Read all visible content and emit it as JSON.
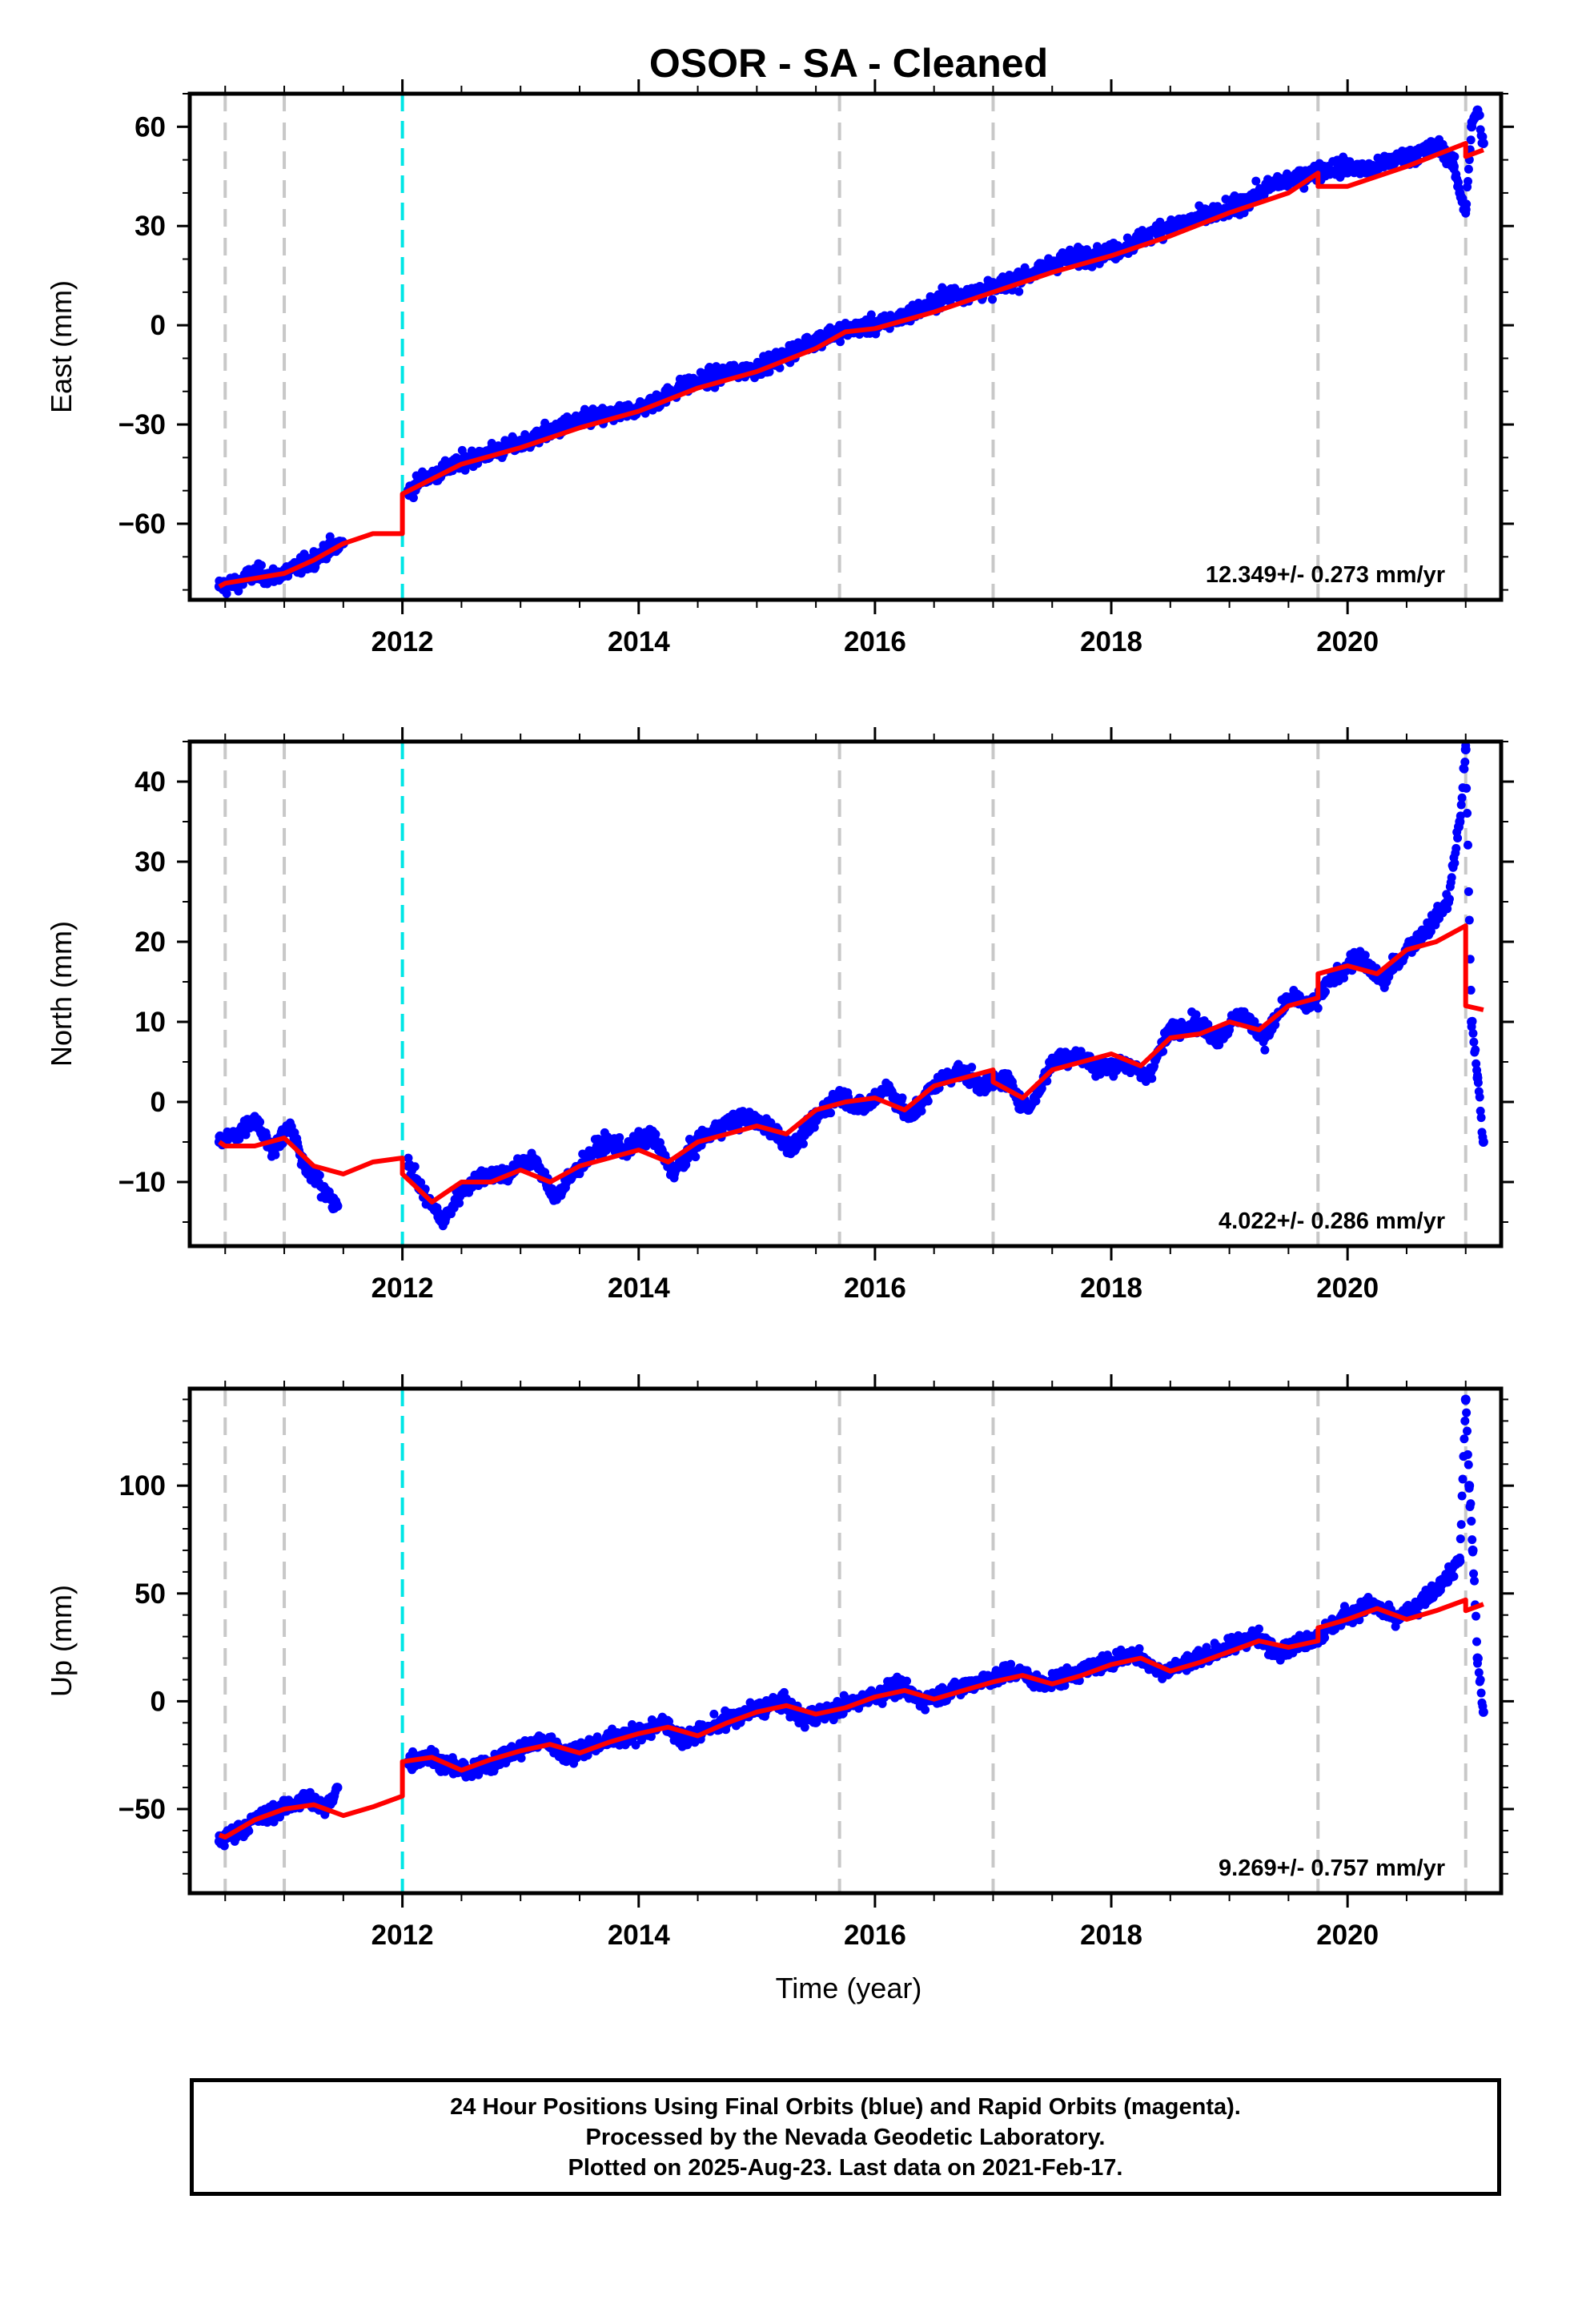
{
  "title": "OSOR  - SA - Cleaned",
  "xlabel": "Time (year)",
  "footer": {
    "line1": "24 Hour Positions Using Final Orbits (blue) and Rapid Orbits (magenta).",
    "line2": "Processed by the Nevada Geodetic Laboratory.",
    "line3": "Plotted on 2025-Aug-23. Last data on 2021-Feb-17."
  },
  "colors": {
    "points": "#0000ff",
    "model": "#ff0000",
    "equipment_change": "#c8c8c8",
    "earthquake": "#00e6e6"
  },
  "chart_data": [
    {
      "type": "scatter",
      "name": "East",
      "ylabel": "East (mm)",
      "rate": "12.349+/- 0.273 mm/yr",
      "xlim": [
        2010.2,
        2021.3
      ],
      "ylim": [
        -83,
        70
      ],
      "yticks": [
        60,
        30,
        0,
        -30,
        -60
      ],
      "ytick_labels": [
        "60",
        "30",
        "0",
        "−30",
        "−60"
      ],
      "xticks": [
        2012,
        2014,
        2016,
        2018,
        2020
      ],
      "equipment_changes": [
        2010.5,
        2011.0,
        2015.7,
        2017.0,
        2019.75,
        2021.0
      ],
      "earthquakes": [
        2012.0
      ],
      "model": [
        [
          2010.45,
          -79
        ],
        [
          2010.5,
          -78
        ],
        [
          2010.75,
          -76.5
        ],
        [
          2011.0,
          -75
        ],
        [
          2011.25,
          -71
        ],
        [
          2011.5,
          -66
        ],
        [
          2011.75,
          -63
        ],
        [
          2012.0,
          -63
        ],
        [
          2012.0,
          -51
        ],
        [
          2012.5,
          -42
        ],
        [
          2013.0,
          -37
        ],
        [
          2013.5,
          -31
        ],
        [
          2014.0,
          -26
        ],
        [
          2014.5,
          -19
        ],
        [
          2015.0,
          -14
        ],
        [
          2015.5,
          -7
        ],
        [
          2015.75,
          -2
        ],
        [
          2016.0,
          -1
        ],
        [
          2016.5,
          4
        ],
        [
          2017.0,
          10
        ],
        [
          2017.5,
          16
        ],
        [
          2018.0,
          21
        ],
        [
          2018.5,
          27
        ],
        [
          2019.0,
          34
        ],
        [
          2019.5,
          40
        ],
        [
          2019.75,
          46
        ],
        [
          2019.75,
          42
        ],
        [
          2020.0,
          42
        ],
        [
          2020.5,
          48
        ],
        [
          2021.0,
          55
        ],
        [
          2021.0,
          51
        ],
        [
          2021.15,
          53
        ]
      ],
      "points": [
        [
          2010.45,
          -79
        ],
        [
          2010.6,
          -78
        ],
        [
          2010.75,
          -75
        ],
        [
          2010.9,
          -76
        ],
        [
          2011.05,
          -74
        ],
        [
          2011.2,
          -72
        ],
        [
          2011.35,
          -68
        ],
        [
          2011.5,
          -66
        ],
        [
          2012.05,
          -50
        ],
        [
          2012.2,
          -46
        ],
        [
          2012.4,
          -43
        ],
        [
          2012.6,
          -40
        ],
        [
          2012.8,
          -38
        ],
        [
          2013.0,
          -36
        ],
        [
          2013.2,
          -33
        ],
        [
          2013.4,
          -30
        ],
        [
          2013.6,
          -28
        ],
        [
          2013.8,
          -27
        ],
        [
          2014.0,
          -25
        ],
        [
          2014.2,
          -22
        ],
        [
          2014.4,
          -18
        ],
        [
          2014.6,
          -16
        ],
        [
          2014.8,
          -14
        ],
        [
          2015.0,
          -13
        ],
        [
          2015.2,
          -10
        ],
        [
          2015.4,
          -6
        ],
        [
          2015.6,
          -3
        ],
        [
          2015.8,
          -1
        ],
        [
          2016.0,
          0
        ],
        [
          2016.2,
          2
        ],
        [
          2016.4,
          5
        ],
        [
          2016.6,
          9
        ],
        [
          2016.8,
          10
        ],
        [
          2017.0,
          11
        ],
        [
          2017.2,
          14
        ],
        [
          2017.4,
          17
        ],
        [
          2017.6,
          20
        ],
        [
          2017.8,
          21
        ],
        [
          2018.0,
          22
        ],
        [
          2018.2,
          25
        ],
        [
          2018.4,
          29
        ],
        [
          2018.6,
          31
        ],
        [
          2018.8,
          33
        ],
        [
          2019.0,
          35
        ],
        [
          2019.2,
          39
        ],
        [
          2019.4,
          43
        ],
        [
          2019.6,
          45
        ],
        [
          2019.8,
          47
        ],
        [
          2020.0,
          48
        ],
        [
          2020.2,
          47
        ],
        [
          2020.4,
          50
        ],
        [
          2020.6,
          52
        ],
        [
          2020.8,
          54
        ],
        [
          2020.9,
          48
        ],
        [
          2020.95,
          40
        ],
        [
          2021.0,
          35
        ],
        [
          2021.05,
          60
        ],
        [
          2021.1,
          65
        ],
        [
          2021.15,
          55
        ]
      ]
    },
    {
      "type": "scatter",
      "name": "North",
      "ylabel": "North (mm)",
      "rate": "4.022+/- 0.286 mm/yr",
      "xlim": [
        2010.2,
        2021.3
      ],
      "ylim": [
        -18,
        45
      ],
      "yticks": [
        40,
        30,
        20,
        10,
        0,
        -10
      ],
      "ytick_labels": [
        "40",
        "30",
        "20",
        "10",
        "0",
        "−10"
      ],
      "xticks": [
        2012,
        2014,
        2016,
        2018,
        2020
      ],
      "equipment_changes": [
        2010.5,
        2011.0,
        2015.7,
        2017.0,
        2019.75,
        2021.0
      ],
      "earthquakes": [
        2012.0
      ],
      "model": [
        [
          2010.45,
          -5
        ],
        [
          2010.5,
          -5.5
        ],
        [
          2010.75,
          -5.5
        ],
        [
          2011.0,
          -4.5
        ],
        [
          2011.25,
          -8
        ],
        [
          2011.5,
          -9
        ],
        [
          2011.75,
          -7.5
        ],
        [
          2012.0,
          -7
        ],
        [
          2012.0,
          -9
        ],
        [
          2012.25,
          -12.5
        ],
        [
          2012.5,
          -10
        ],
        [
          2012.75,
          -10
        ],
        [
          2013.0,
          -8.5
        ],
        [
          2013.25,
          -10
        ],
        [
          2013.5,
          -8
        ],
        [
          2013.75,
          -7
        ],
        [
          2014.0,
          -6
        ],
        [
          2014.25,
          -7.5
        ],
        [
          2014.5,
          -5
        ],
        [
          2014.75,
          -4
        ],
        [
          2015.0,
          -3
        ],
        [
          2015.25,
          -4
        ],
        [
          2015.5,
          -1
        ],
        [
          2015.75,
          0
        ],
        [
          2016.0,
          0.5
        ],
        [
          2016.25,
          -1
        ],
        [
          2016.5,
          2
        ],
        [
          2016.75,
          3
        ],
        [
          2017.0,
          4
        ],
        [
          2017.0,
          2.5
        ],
        [
          2017.25,
          0.5
        ],
        [
          2017.5,
          4
        ],
        [
          2017.75,
          5
        ],
        [
          2018.0,
          6
        ],
        [
          2018.25,
          4.5
        ],
        [
          2018.5,
          8
        ],
        [
          2018.75,
          8.5
        ],
        [
          2019.0,
          10
        ],
        [
          2019.25,
          9
        ],
        [
          2019.5,
          12
        ],
        [
          2019.75,
          13
        ],
        [
          2019.75,
          16
        ],
        [
          2020.0,
          17
        ],
        [
          2020.25,
          16
        ],
        [
          2020.5,
          19
        ],
        [
          2020.75,
          20
        ],
        [
          2021.0,
          22
        ],
        [
          2021.0,
          12
        ],
        [
          2021.15,
          11.5
        ]
      ],
      "points": [
        [
          2010.45,
          -5
        ],
        [
          2010.6,
          -4
        ],
        [
          2010.75,
          -2
        ],
        [
          2010.9,
          -6
        ],
        [
          2011.05,
          -3
        ],
        [
          2011.2,
          -9
        ],
        [
          2011.35,
          -11
        ],
        [
          2011.45,
          -13
        ],
        [
          2012.05,
          -8
        ],
        [
          2012.2,
          -12
        ],
        [
          2012.35,
          -15
        ],
        [
          2012.5,
          -11
        ],
        [
          2012.7,
          -9
        ],
        [
          2012.9,
          -9
        ],
        [
          2013.1,
          -7
        ],
        [
          2013.3,
          -12
        ],
        [
          2013.5,
          -8
        ],
        [
          2013.7,
          -5
        ],
        [
          2013.9,
          -6
        ],
        [
          2014.1,
          -4
        ],
        [
          2014.3,
          -9
        ],
        [
          2014.5,
          -5
        ],
        [
          2014.7,
          -3
        ],
        [
          2014.9,
          -2
        ],
        [
          2015.1,
          -3
        ],
        [
          2015.3,
          -6
        ],
        [
          2015.5,
          -2
        ],
        [
          2015.7,
          1
        ],
        [
          2015.9,
          -1
        ],
        [
          2016.1,
          2
        ],
        [
          2016.3,
          -2
        ],
        [
          2016.5,
          2
        ],
        [
          2016.7,
          4
        ],
        [
          2016.9,
          2
        ],
        [
          2017.1,
          3
        ],
        [
          2017.3,
          -1
        ],
        [
          2017.5,
          5
        ],
        [
          2017.7,
          6
        ],
        [
          2017.9,
          4
        ],
        [
          2018.1,
          5
        ],
        [
          2018.3,
          3
        ],
        [
          2018.5,
          9
        ],
        [
          2018.7,
          10
        ],
        [
          2018.9,
          8
        ],
        [
          2019.1,
          11
        ],
        [
          2019.3,
          8
        ],
        [
          2019.5,
          13
        ],
        [
          2019.7,
          12
        ],
        [
          2019.9,
          16
        ],
        [
          2020.1,
          18
        ],
        [
          2020.3,
          15
        ],
        [
          2020.5,
          19
        ],
        [
          2020.7,
          22
        ],
        [
          2020.85,
          25
        ],
        [
          2020.95,
          35
        ],
        [
          2021.0,
          44
        ],
        [
          2021.05,
          10
        ],
        [
          2021.1,
          3
        ],
        [
          2021.15,
          -5
        ]
      ]
    },
    {
      "type": "scatter",
      "name": "Up",
      "ylabel": "Up (mm)",
      "rate": "9.269+/- 0.757 mm/yr",
      "xlim": [
        2010.2,
        2021.3
      ],
      "ylim": [
        -89,
        145
      ],
      "yticks": [
        100,
        50,
        0,
        -50
      ],
      "ytick_labels": [
        "100",
        "50",
        "0",
        "−50"
      ],
      "xticks": [
        2012,
        2014,
        2016,
        2018,
        2020
      ],
      "equipment_changes": [
        2010.5,
        2011.0,
        2015.7,
        2017.0,
        2019.75,
        2021.0
      ],
      "earthquakes": [
        2012.0
      ],
      "model": [
        [
          2010.45,
          -62
        ],
        [
          2010.5,
          -63
        ],
        [
          2010.75,
          -55
        ],
        [
          2011.0,
          -50
        ],
        [
          2011.25,
          -48
        ],
        [
          2011.5,
          -53
        ],
        [
          2011.75,
          -49
        ],
        [
          2012.0,
          -44
        ],
        [
          2012.0,
          -28
        ],
        [
          2012.25,
          -26
        ],
        [
          2012.5,
          -32
        ],
        [
          2012.75,
          -27
        ],
        [
          2013.0,
          -23
        ],
        [
          2013.25,
          -20
        ],
        [
          2013.5,
          -24
        ],
        [
          2013.75,
          -19
        ],
        [
          2014.0,
          -15
        ],
        [
          2014.25,
          -12
        ],
        [
          2014.5,
          -16
        ],
        [
          2014.75,
          -10
        ],
        [
          2015.0,
          -5
        ],
        [
          2015.25,
          -2
        ],
        [
          2015.5,
          -6
        ],
        [
          2015.75,
          -3
        ],
        [
          2016.0,
          2
        ],
        [
          2016.25,
          5
        ],
        [
          2016.5,
          1
        ],
        [
          2016.75,
          5
        ],
        [
          2017.0,
          9
        ],
        [
          2017.25,
          12
        ],
        [
          2017.5,
          8
        ],
        [
          2017.75,
          12
        ],
        [
          2018.0,
          17
        ],
        [
          2018.25,
          20
        ],
        [
          2018.5,
          14
        ],
        [
          2018.75,
          18
        ],
        [
          2019.0,
          23
        ],
        [
          2019.25,
          28
        ],
        [
          2019.5,
          25
        ],
        [
          2019.75,
          28
        ],
        [
          2019.75,
          34
        ],
        [
          2020.0,
          38
        ],
        [
          2020.25,
          43
        ],
        [
          2020.5,
          38
        ],
        [
          2020.75,
          42
        ],
        [
          2021.0,
          47
        ],
        [
          2021.0,
          42
        ],
        [
          2021.15,
          45
        ]
      ],
      "points": [
        [
          2010.45,
          -65
        ],
        [
          2010.6,
          -60
        ],
        [
          2010.75,
          -55
        ],
        [
          2010.9,
          -52
        ],
        [
          2011.05,
          -48
        ],
        [
          2011.2,
          -45
        ],
        [
          2011.35,
          -50
        ],
        [
          2011.45,
          -40
        ],
        [
          2012.05,
          -28
        ],
        [
          2012.2,
          -25
        ],
        [
          2012.4,
          -30
        ],
        [
          2012.6,
          -33
        ],
        [
          2012.8,
          -27
        ],
        [
          2013.0,
          -22
        ],
        [
          2013.2,
          -18
        ],
        [
          2013.4,
          -25
        ],
        [
          2013.6,
          -20
        ],
        [
          2013.8,
          -17
        ],
        [
          2014.0,
          -15
        ],
        [
          2014.2,
          -10
        ],
        [
          2014.4,
          -18
        ],
        [
          2014.6,
          -12
        ],
        [
          2014.8,
          -8
        ],
        [
          2015.0,
          -4
        ],
        [
          2015.2,
          0
        ],
        [
          2015.4,
          -8
        ],
        [
          2015.6,
          -5
        ],
        [
          2015.8,
          -1
        ],
        [
          2016.0,
          3
        ],
        [
          2016.2,
          7
        ],
        [
          2016.4,
          0
        ],
        [
          2016.6,
          4
        ],
        [
          2016.8,
          8
        ],
        [
          2017.0,
          11
        ],
        [
          2017.2,
          14
        ],
        [
          2017.4,
          8
        ],
        [
          2017.6,
          11
        ],
        [
          2017.8,
          15
        ],
        [
          2018.0,
          19
        ],
        [
          2018.2,
          22
        ],
        [
          2018.4,
          14
        ],
        [
          2018.6,
          17
        ],
        [
          2018.8,
          22
        ],
        [
          2019.0,
          25
        ],
        [
          2019.2,
          30
        ],
        [
          2019.4,
          24
        ],
        [
          2019.6,
          27
        ],
        [
          2019.8,
          32
        ],
        [
          2020.0,
          40
        ],
        [
          2020.2,
          45
        ],
        [
          2020.4,
          38
        ],
        [
          2020.6,
          44
        ],
        [
          2020.8,
          55
        ],
        [
          2020.95,
          65
        ],
        [
          2021.0,
          140
        ],
        [
          2021.03,
          100
        ],
        [
          2021.06,
          70
        ],
        [
          2021.1,
          20
        ],
        [
          2021.15,
          -5
        ]
      ]
    }
  ]
}
